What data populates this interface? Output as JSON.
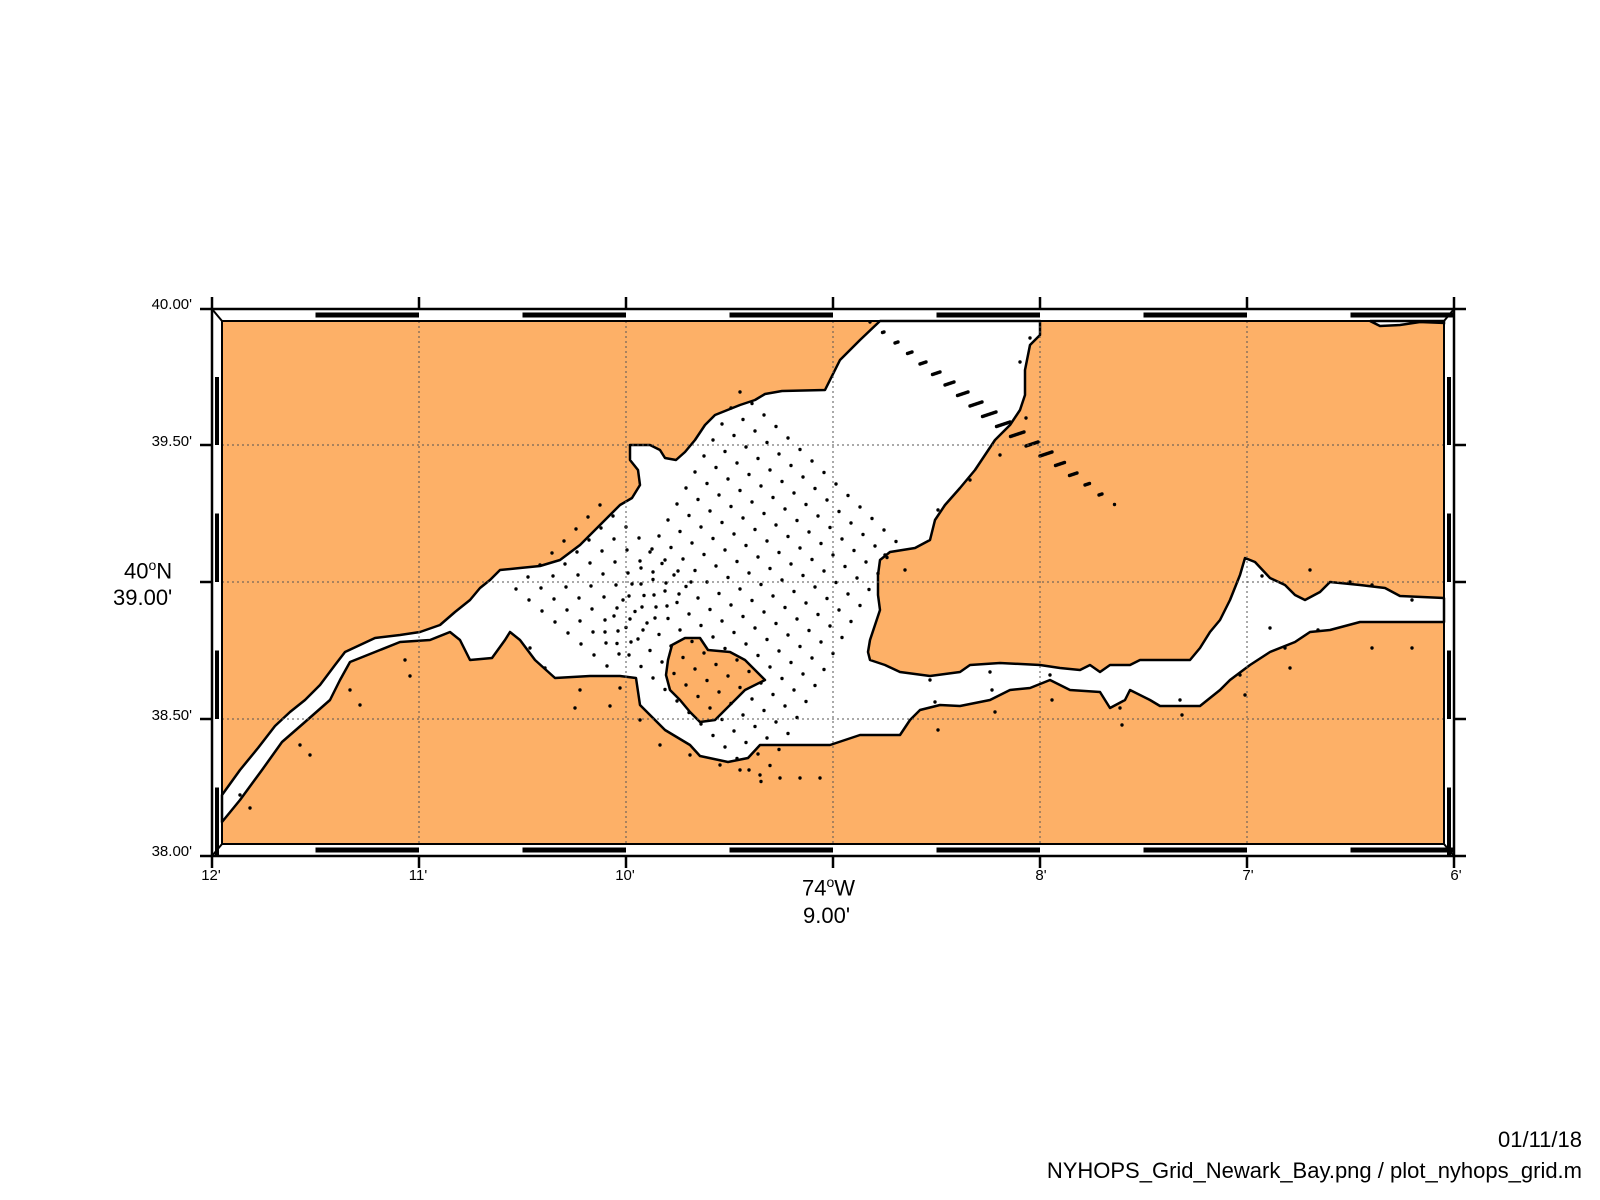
{
  "map": {
    "land_color": "#FDB067",
    "water_color": "#FFFFFF",
    "lat_ticks": [
      "40.00'",
      "39.50'",
      "39.00'",
      "38.50'",
      "38.00'"
    ],
    "lat_degree": "40",
    "lat_degree_suffix": "N",
    "lon_ticks": [
      "12'",
      "11'",
      "10'",
      "9.00'",
      "8'",
      "7'",
      "6'"
    ],
    "lon_degree": "74",
    "lon_degree_suffix": "W",
    "degree_sign": "o"
  },
  "footer": {
    "date": "01/11/18",
    "filename": "NYHOPS_Grid_Newark_Bay.png / plot_nyhops_grid.m"
  }
}
